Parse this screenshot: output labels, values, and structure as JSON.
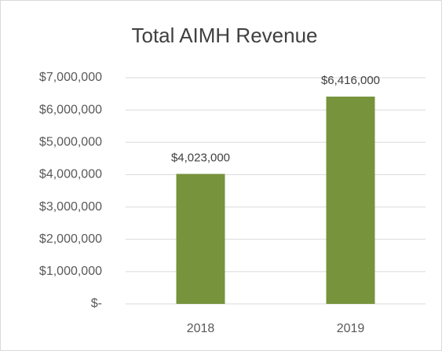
{
  "chart_data": {
    "type": "bar",
    "title": "Total AIMH Revenue",
    "categories": [
      "2018",
      "2019"
    ],
    "values": [
      4023000,
      6416000
    ],
    "value_labels": [
      "$4,023,000",
      "$6,416,000"
    ],
    "color": "#77933c",
    "ylim": [
      0,
      7000000
    ],
    "yticks": [
      {
        "value": 0,
        "label": "$-"
      },
      {
        "value": 1000000,
        "label": "$1,000,000"
      },
      {
        "value": 2000000,
        "label": "$2,000,000"
      },
      {
        "value": 3000000,
        "label": "$3,000,000"
      },
      {
        "value": 4000000,
        "label": "$4,000,000"
      },
      {
        "value": 5000000,
        "label": "$5,000,000"
      },
      {
        "value": 6000000,
        "label": "$6,000,000"
      },
      {
        "value": 7000000,
        "label": "$7,000,000"
      }
    ],
    "grid": true
  }
}
